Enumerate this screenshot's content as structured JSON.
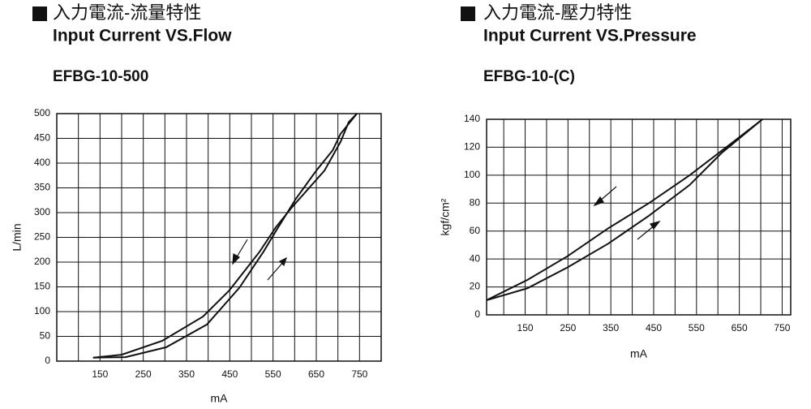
{
  "chart_data": [
    {
      "type": "line",
      "heading": "入力電流-流量特性",
      "title": "Input Current VS.Flow",
      "subtitle": "EFBG-10-500",
      "ylabel": "L/min",
      "xlabel": "mA",
      "xlim": [
        50,
        800
      ],
      "ylim": [
        0,
        500
      ],
      "xticks": [
        150,
        250,
        350,
        450,
        550,
        650,
        750
      ],
      "yticks": [
        0,
        50,
        100,
        150,
        200,
        250,
        300,
        350,
        400,
        450,
        500
      ],
      "x_grid": [
        100,
        150,
        200,
        250,
        300,
        350,
        400,
        450,
        500,
        550,
        600,
        650,
        700,
        750
      ],
      "grid": true,
      "series": [
        {
          "color": "#111111",
          "x": [
            134,
            200,
            294,
            388,
            449,
            519,
            556,
            594,
            669,
            706,
            725,
            744
          ],
          "values": [
            7,
            13,
            41,
            90,
            143,
            221,
            270,
            311,
            385,
            443,
            483,
            500
          ]
        },
        {
          "color": "#111111",
          "x": [
            134,
            209,
            303,
            397,
            472,
            528,
            556,
            603,
            650,
            688,
            706,
            744
          ],
          "values": [
            7,
            8,
            28,
            74,
            148,
            221,
            262,
            328,
            385,
            426,
            459,
            500
          ]
        }
      ]
    },
    {
      "type": "line",
      "heading": "入力電流-壓力特性",
      "title": "Input Current VS.Pressure",
      "subtitle": "EFBG-10-(C)",
      "ylabel": "kgf/cm²",
      "xlabel": "mA",
      "xlim": [
        60,
        770
      ],
      "ylim": [
        0,
        140
      ],
      "xticks": [
        150,
        250,
        350,
        450,
        550,
        650,
        750
      ],
      "yticks": [
        0,
        20,
        40,
        60,
        80,
        100,
        120,
        140
      ],
      "x_grid": [
        100,
        150,
        200,
        250,
        300,
        350,
        400,
        450,
        500,
        550,
        600,
        650,
        700,
        750
      ],
      "grid": true,
      "series": [
        {
          "color": "#111111",
          "x": [
            60,
            155,
            249,
            344,
            439,
            534,
            628,
            704
          ],
          "values": [
            10.5,
            25,
            42,
            62,
            80,
            100,
            122,
            140
          ]
        },
        {
          "color": "#111111",
          "x": [
            60,
            155,
            249,
            344,
            439,
            534,
            609,
            704
          ],
          "values": [
            10.5,
            19,
            34,
            51,
            71,
            93,
            116,
            140
          ]
        }
      ]
    }
  ]
}
